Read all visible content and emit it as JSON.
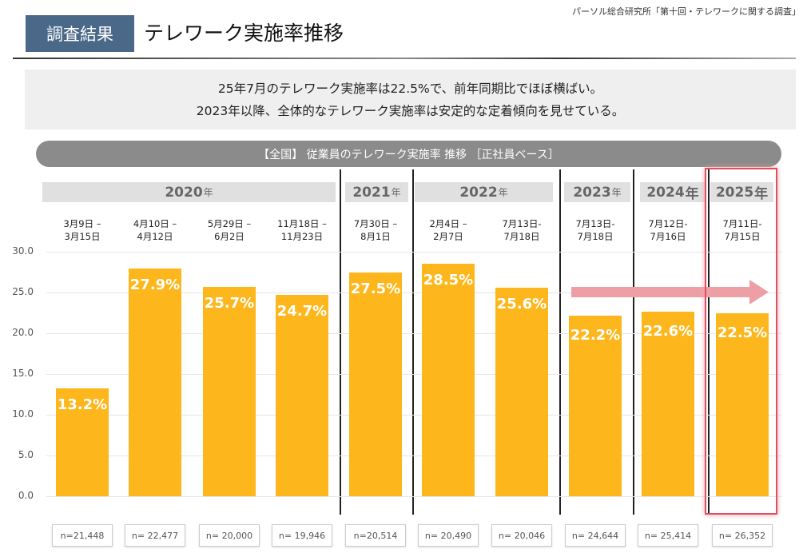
{
  "header": {
    "source": "パーソル総合研究所「第十回・テレワークに関する調査」",
    "badge": "調査結果",
    "title": "テレワーク実施率推移"
  },
  "summary": {
    "line1": "25年7月のテレワーク実施率は22.5%で、前年同期比でほぼ横ばい。",
    "line2": "2023年以降、全体的なテレワーク実施率は安定的な定着傾向を見せている。"
  },
  "chart_data": {
    "type": "bar",
    "title": "【全国】 従業員のテレワーク実施率 推移 ［正社員ベース］",
    "years": [
      {
        "year": "2020",
        "suffix": "年"
      },
      {
        "year": "2021",
        "suffix": "年"
      },
      {
        "year": "2022",
        "suffix": "年"
      },
      {
        "year": "2023",
        "suffix": "年"
      },
      {
        "year": "2024",
        "suffix": "年"
      },
      {
        "year": "2025",
        "suffix": "年"
      }
    ],
    "categories": [
      [
        "3月9日 –",
        "3月15日"
      ],
      [
        "4月10日 –",
        "4月12日"
      ],
      [
        "5月29日 –",
        "6月2日"
      ],
      [
        "11月18日 –",
        "11月23日"
      ],
      [
        "7月30日 –",
        "8月1日"
      ],
      [
        "2月4日 –",
        "2月7日"
      ],
      [
        "7月13日-",
        "7月18日"
      ],
      [
        "7月13日-",
        "7月18日"
      ],
      [
        "7月12日-",
        "7月16日"
      ],
      [
        "7月11日-",
        "7月15日"
      ]
    ],
    "values": [
      13.2,
      27.9,
      25.7,
      24.7,
      27.5,
      28.5,
      25.6,
      22.2,
      22.6,
      22.5
    ],
    "data_labels": [
      "13.2%",
      "27.9%",
      "25.7%",
      "24.7%",
      "27.5%",
      "28.5%",
      "25.6%",
      "22.2%",
      "22.6%",
      "22.5%"
    ],
    "sample_sizes": [
      "n=21,448",
      "n= 22,477",
      "n= 20,000",
      "n= 19,946",
      "n=20,514",
      "n= 20,490",
      "n= 20,046",
      "n= 24,644",
      "n= 25,414",
      "n= 26,352"
    ],
    "yticks": [
      "0.0",
      "5.0",
      "10.0",
      "15.0",
      "20.0",
      "25.0",
      "30.0"
    ],
    "ylim": [
      0,
      30
    ],
    "grid": true,
    "highlight": "2025",
    "colors": {
      "bar": "#fdb71c",
      "arrow": "#ee9fa5",
      "highlight": "#e05060"
    }
  }
}
